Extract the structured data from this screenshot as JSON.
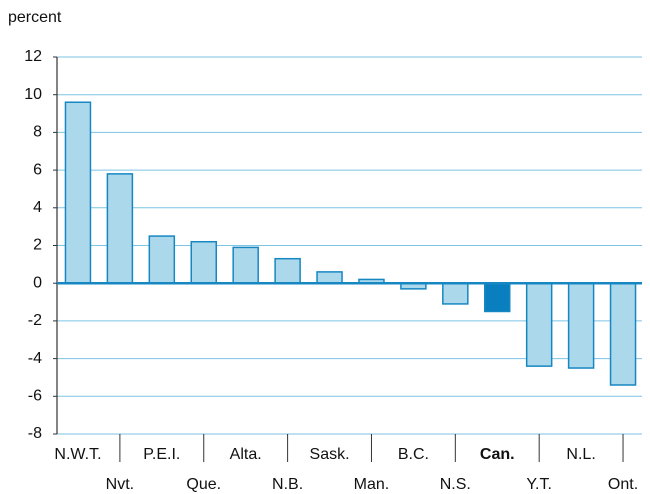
{
  "chart_data": {
    "type": "bar",
    "ylabel": "percent",
    "categories": [
      "N.W.T.",
      "Nvt.",
      "P.E.I.",
      "Que.",
      "Alta.",
      "N.B.",
      "Sask.",
      "Man.",
      "B.C.",
      "N.S.",
      "Can.",
      "Y.T.",
      "N.L.",
      "Ont."
    ],
    "values": [
      9.6,
      5.8,
      2.5,
      2.2,
      1.9,
      1.3,
      0.6,
      0.2,
      -0.3,
      -1.1,
      -1.5,
      -4.4,
      -4.5,
      -5.4
    ],
    "color": "#acd8ec",
    "colors": [
      "#acd8ec",
      "#acd8ec",
      "#acd8ec",
      "#acd8ec",
      "#acd8ec",
      "#acd8ec",
      "#acd8ec",
      "#acd8ec",
      "#acd8ec",
      "#acd8ec",
      "#0a7fc0",
      "#acd8ec",
      "#acd8ec",
      "#acd8ec"
    ],
    "edge_color": "#1787c2",
    "ylim": [
      -8,
      12
    ],
    "yticks": [
      -8,
      -6,
      -4,
      -2,
      0,
      2,
      4,
      6,
      8,
      10,
      12
    ],
    "grid": true
  }
}
